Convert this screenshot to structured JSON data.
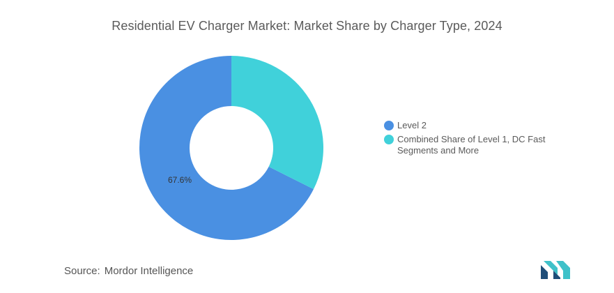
{
  "chart_data": {
    "type": "pie",
    "donut": true,
    "title": "Residential EV Charger Market: Market Share by Charger Type, 2024",
    "categories": [
      "Level 2",
      "Combined Share of Level 1, DC Fast Segments and More"
    ],
    "values": [
      67.6,
      32.4
    ],
    "colors": [
      "#4a90e2",
      "#40d1da"
    ],
    "data_labels": [
      "67.6%",
      ""
    ],
    "legend_position": "right"
  },
  "source": {
    "label": "Source:",
    "value": "Mordor Intelligence"
  },
  "logo": {
    "icon": "mordor-intelligence-logo-icon",
    "colors": [
      "#1f4e79",
      "#3fc1c9"
    ]
  }
}
